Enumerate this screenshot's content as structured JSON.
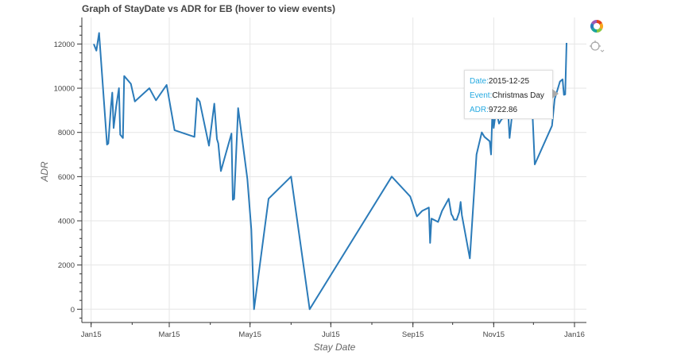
{
  "chart_data": {
    "type": "line",
    "title": "Graph of StayDate vs ADR for EB (hover to view events)",
    "xlabel": "Stay Date",
    "ylabel": "ADR",
    "xlim": [
      "2014-12-25",
      "2016-01-10"
    ],
    "ylim": [
      -600,
      13200
    ],
    "x_ticks": [
      {
        "date": "2015-01-01",
        "label": "Jan15"
      },
      {
        "date": "2015-03-01",
        "label": "Mar15"
      },
      {
        "date": "2015-05-01",
        "label": "May15"
      },
      {
        "date": "2015-07-01",
        "label": "Jul15"
      },
      {
        "date": "2015-09-01",
        "label": "Sep15"
      },
      {
        "date": "2015-11-01",
        "label": "Nov15"
      },
      {
        "date": "2016-01-01",
        "label": "Jan16"
      }
    ],
    "y_ticks": [
      0,
      2000,
      4000,
      6000,
      8000,
      10000,
      12000
    ],
    "grid": true,
    "line_color": "#2b7bb9",
    "series": [
      {
        "name": "",
        "points": [
          [
            "2015-01-03",
            12000
          ],
          [
            "2015-01-05",
            11700
          ],
          [
            "2015-01-07",
            12500
          ],
          [
            "2015-01-13",
            7450
          ],
          [
            "2015-01-14",
            7500
          ],
          [
            "2015-01-16",
            9200
          ],
          [
            "2015-01-17",
            9800
          ],
          [
            "2015-01-18",
            8200
          ],
          [
            "2015-01-20",
            9200
          ],
          [
            "2015-01-22",
            10000
          ],
          [
            "2015-01-23",
            7900
          ],
          [
            "2015-01-25",
            7750
          ],
          [
            "2015-01-26",
            10550
          ],
          [
            "2015-01-31",
            10200
          ],
          [
            "2015-02-03",
            9400
          ],
          [
            "2015-02-14",
            10000
          ],
          [
            "2015-02-19",
            9450
          ],
          [
            "2015-02-27",
            10150
          ],
          [
            "2015-03-05",
            8100
          ],
          [
            "2015-03-20",
            7800
          ],
          [
            "2015-03-22",
            9550
          ],
          [
            "2015-03-24",
            9400
          ],
          [
            "2015-03-31",
            7400
          ],
          [
            "2015-04-04",
            9300
          ],
          [
            "2015-04-06",
            7700
          ],
          [
            "2015-04-07",
            7500
          ],
          [
            "2015-04-09",
            6250
          ],
          [
            "2015-04-17",
            7950
          ],
          [
            "2015-04-18",
            4950
          ],
          [
            "2015-04-19",
            5000
          ],
          [
            "2015-04-22",
            9100
          ],
          [
            "2015-04-29",
            5900
          ],
          [
            "2015-05-02",
            3600
          ],
          [
            "2015-05-04",
            0
          ],
          [
            "2015-05-15",
            5000
          ],
          [
            "2015-06-01",
            6000
          ],
          [
            "2015-06-15",
            0
          ],
          [
            "2015-08-16",
            6000
          ],
          [
            "2015-08-30",
            5100
          ],
          [
            "2015-09-04",
            4200
          ],
          [
            "2015-09-08",
            4450
          ],
          [
            "2015-09-13",
            4600
          ],
          [
            "2015-09-14",
            3000
          ],
          [
            "2015-09-15",
            4100
          ],
          [
            "2015-09-20",
            3950
          ],
          [
            "2015-09-23",
            4450
          ],
          [
            "2015-09-28",
            5000
          ],
          [
            "2015-09-30",
            4300
          ],
          [
            "2015-10-01",
            4200
          ],
          [
            "2015-10-02",
            4050
          ],
          [
            "2015-10-04",
            4050
          ],
          [
            "2015-10-06",
            4400
          ],
          [
            "2015-10-07",
            4850
          ],
          [
            "2015-10-08",
            4250
          ],
          [
            "2015-10-14",
            2300
          ],
          [
            "2015-10-19",
            7000
          ],
          [
            "2015-10-23",
            8000
          ],
          [
            "2015-10-25",
            7800
          ],
          [
            "2015-10-29",
            7600
          ],
          [
            "2015-10-30",
            7000
          ],
          [
            "2015-10-31",
            9000
          ],
          [
            "2015-11-01",
            8200
          ],
          [
            "2015-11-02",
            8650
          ],
          [
            "2015-11-04",
            8700
          ],
          [
            "2015-11-05",
            8400
          ],
          [
            "2015-11-07",
            8600
          ],
          [
            "2015-11-12",
            8750
          ],
          [
            "2015-11-13",
            7750
          ],
          [
            "2015-11-15",
            8900
          ],
          [
            "2015-11-30",
            9200
          ],
          [
            "2015-12-02",
            6550
          ],
          [
            "2015-12-15",
            8300
          ],
          [
            "2015-12-17",
            9500
          ],
          [
            "2015-12-21",
            10300
          ],
          [
            "2015-12-23",
            10400
          ],
          [
            "2015-12-24",
            9700
          ],
          [
            "2015-12-25",
            9722.86
          ],
          [
            "2015-12-26",
            12050
          ]
        ]
      }
    ]
  },
  "tooltip": {
    "date_key": "Date:",
    "date_value": "2015-12-25",
    "event_key": "Event:",
    "event_value": "Christmas Day",
    "adr_key": "ADR:",
    "adr_value": "9722.86"
  },
  "toolbar": {
    "icons": [
      "bokeh-logo-icon",
      "hover-tool-icon"
    ]
  }
}
